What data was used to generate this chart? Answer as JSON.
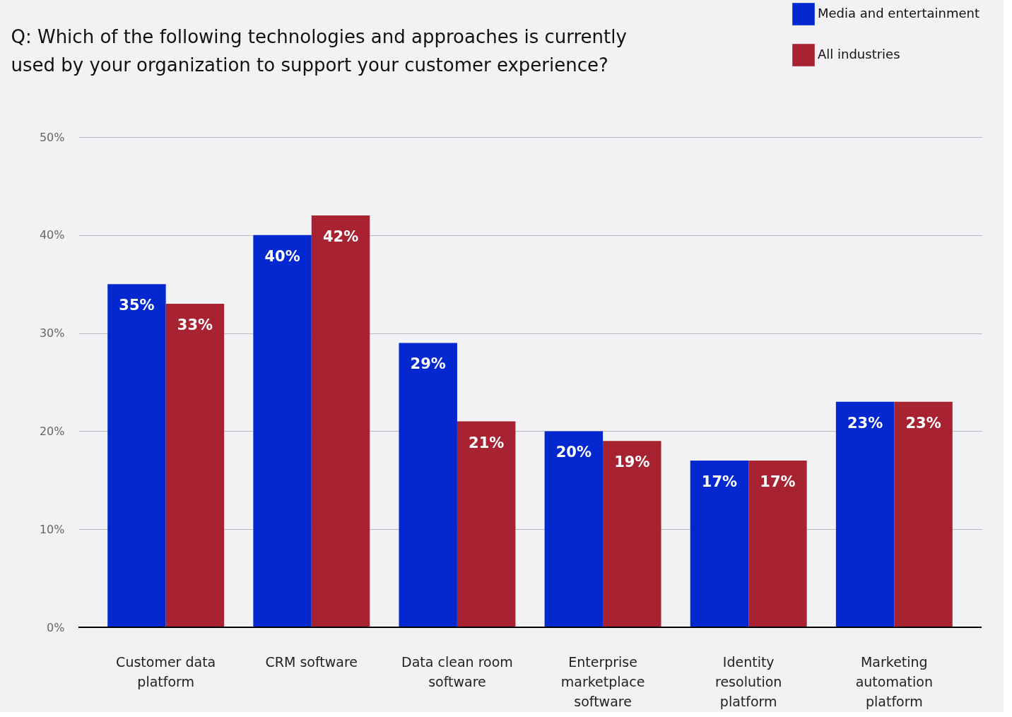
{
  "chart_data": {
    "type": "bar",
    "title": "Q: Which of the following technologies and approaches is currently used by your organization to support your customer experience?",
    "categories": [
      "Customer data platform",
      "CRM software",
      "Data clean room software",
      "Enterprise marketplace software",
      "Identity resolution platform",
      "Marketing automation platform"
    ],
    "series": [
      {
        "name": "Media and entertainment",
        "color": "#0328d0",
        "values": [
          35,
          40,
          29,
          20,
          17,
          23
        ],
        "value_labels": [
          "35%",
          "40%",
          "29%",
          "20%",
          "17%",
          "23%"
        ]
      },
      {
        "name": "All industries",
        "color": "#a72332",
        "values": [
          33,
          42,
          21,
          19,
          17,
          23
        ],
        "value_labels": [
          "33%",
          "42%",
          "21%",
          "19%",
          "17%",
          "23%"
        ]
      }
    ],
    "ylim": [
      0,
      50
    ],
    "yticks": [
      {
        "value": 0,
        "label": "0%"
      },
      {
        "value": 10,
        "label": "10%"
      },
      {
        "value": 20,
        "label": "20%"
      },
      {
        "value": 30,
        "label": "30%"
      },
      {
        "value": 40,
        "label": "40%"
      },
      {
        "value": 50,
        "label": "50%"
      }
    ],
    "grid": "y",
    "legend": "top right"
  }
}
